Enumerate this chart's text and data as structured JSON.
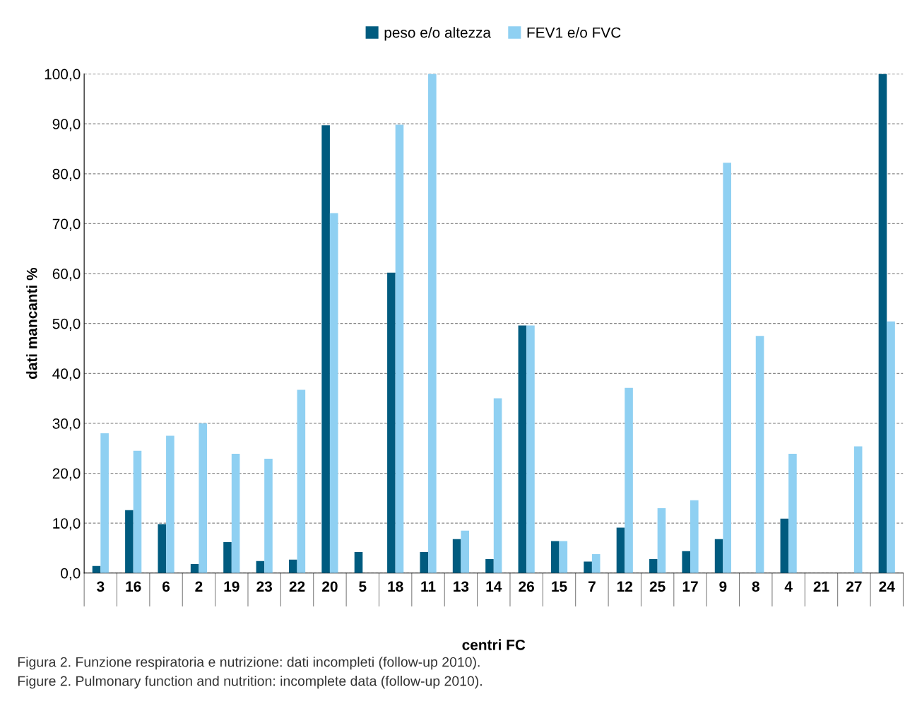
{
  "chart_data": {
    "type": "bar",
    "xlabel": "centri FC",
    "ylabel": "dati mancanti %",
    "categories": [
      "3",
      "16",
      "6",
      "2",
      "19",
      "23",
      "22",
      "20",
      "5",
      "18",
      "11",
      "13",
      "14",
      "26",
      "15",
      "7",
      "12",
      "25",
      "17",
      "9",
      "8",
      "4",
      "21",
      "27",
      "24"
    ],
    "series": [
      {
        "name": "peso e/o altezza",
        "color": "#005b7f",
        "values": [
          1.4,
          12.6,
          9.8,
          1.8,
          6.2,
          2.4,
          2.7,
          89.7,
          4.2,
          60.2,
          4.2,
          6.8,
          2.8,
          49.6,
          6.4,
          2.3,
          9.1,
          2.8,
          4.4,
          6.8,
          null,
          10.9,
          null,
          null,
          100
        ]
      },
      {
        "name": "FEV1 e/o FVC",
        "color": "#8fd0f2",
        "values": [
          28.0,
          24.5,
          27.5,
          30.0,
          23.9,
          22.9,
          36.7,
          72.1,
          null,
          89.8,
          100,
          8.5,
          35.0,
          49.6,
          6.4,
          3.8,
          37.1,
          13.0,
          14.6,
          82.2,
          47.5,
          23.9,
          null,
          25.4,
          50.4
        ]
      }
    ],
    "ylim": [
      0,
      100
    ],
    "yticks": [
      {
        "value": 0,
        "label": "0,0"
      },
      {
        "value": 10,
        "label": "10,0"
      },
      {
        "value": 20,
        "label": "20,0"
      },
      {
        "value": 30,
        "label": "30,0"
      },
      {
        "value": 40,
        "label": "40,0"
      },
      {
        "value": 50,
        "label": "50,0"
      },
      {
        "value": 60,
        "label": "60,0"
      },
      {
        "value": 70,
        "label": "70,0"
      },
      {
        "value": 80,
        "label": "80,0"
      },
      {
        "value": 90,
        "label": "90,0"
      },
      {
        "value": 100,
        "label": "100,0"
      }
    ],
    "grid": "y",
    "legend": "top",
    "annotations": [
      "Figura 2. Funzione respiratoria e nutrizione: dati incompleti (follow-up 2010).",
      "Figure 2. Pulmonary function and nutrition: incomplete data (follow-up 2010)."
    ]
  }
}
